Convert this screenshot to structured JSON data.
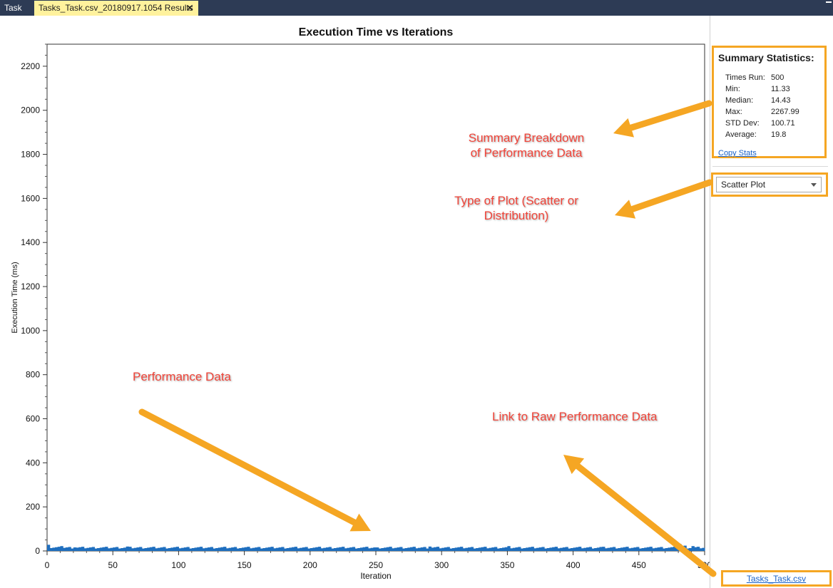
{
  "tabs": {
    "task_label": "Task",
    "results_label": "Tasks_Task.csv_20180917.1054 Results",
    "close_glyph": "✕"
  },
  "chart_data": {
    "type": "bar",
    "title": "Execution Time vs Iterations",
    "xlabel": "Iteration",
    "ylabel": "Execution Time (ms)",
    "xlim": [
      0,
      500
    ],
    "ylim": [
      0,
      2300
    ],
    "xticks": [
      0,
      50,
      100,
      150,
      200,
      250,
      300,
      350,
      400,
      450,
      500
    ],
    "yticks": [
      0,
      200,
      400,
      600,
      800,
      1000,
      1200,
      1400,
      1600,
      1800,
      2000,
      2200
    ],
    "series": [
      {
        "color": "#1f6fbf",
        "baseline": 14,
        "points": [
          [
            0,
            28
          ],
          [
            5,
            30
          ],
          [
            10,
            22
          ],
          [
            15,
            18
          ],
          [
            20,
            16
          ],
          [
            35,
            22
          ],
          [
            60,
            20
          ],
          [
            95,
            20
          ],
          [
            135,
            26
          ],
          [
            165,
            18
          ],
          [
            250,
            16
          ],
          [
            283,
            40
          ],
          [
            285,
            60
          ],
          [
            287,
            35
          ],
          [
            290,
            20
          ],
          [
            335,
            18
          ],
          [
            350,
            22
          ],
          [
            420,
            18
          ],
          [
            480,
            32
          ],
          [
            484,
            24
          ],
          [
            490,
            22
          ]
        ]
      }
    ]
  },
  "stats": {
    "title": "Summary Statistics:",
    "rows": [
      {
        "label": "Times Run:",
        "value": "500"
      },
      {
        "label": "Min:",
        "value": "11.33"
      },
      {
        "label": "Median:",
        "value": "14.43"
      },
      {
        "label": "Max:",
        "value": "2267.99"
      },
      {
        "label": "STD Dev:",
        "value": "100.71"
      },
      {
        "label": "Average:",
        "value": "19.8"
      }
    ],
    "copy_label": "Copy Stats"
  },
  "plot_type": {
    "selected": "Scatter Plot"
  },
  "csv_link": "Tasks_Task.csv",
  "annotations": {
    "summary_line1": "Summary Breakdown",
    "summary_line2": "of Performance Data",
    "plottype_line1": "Type of Plot (Scatter or",
    "plottype_line2": "Distribution)",
    "performance": "Performance Data",
    "rawlink": "Link to Raw Performance Data",
    "color": "#f0453a",
    "arrow_color": "#f5a623"
  }
}
